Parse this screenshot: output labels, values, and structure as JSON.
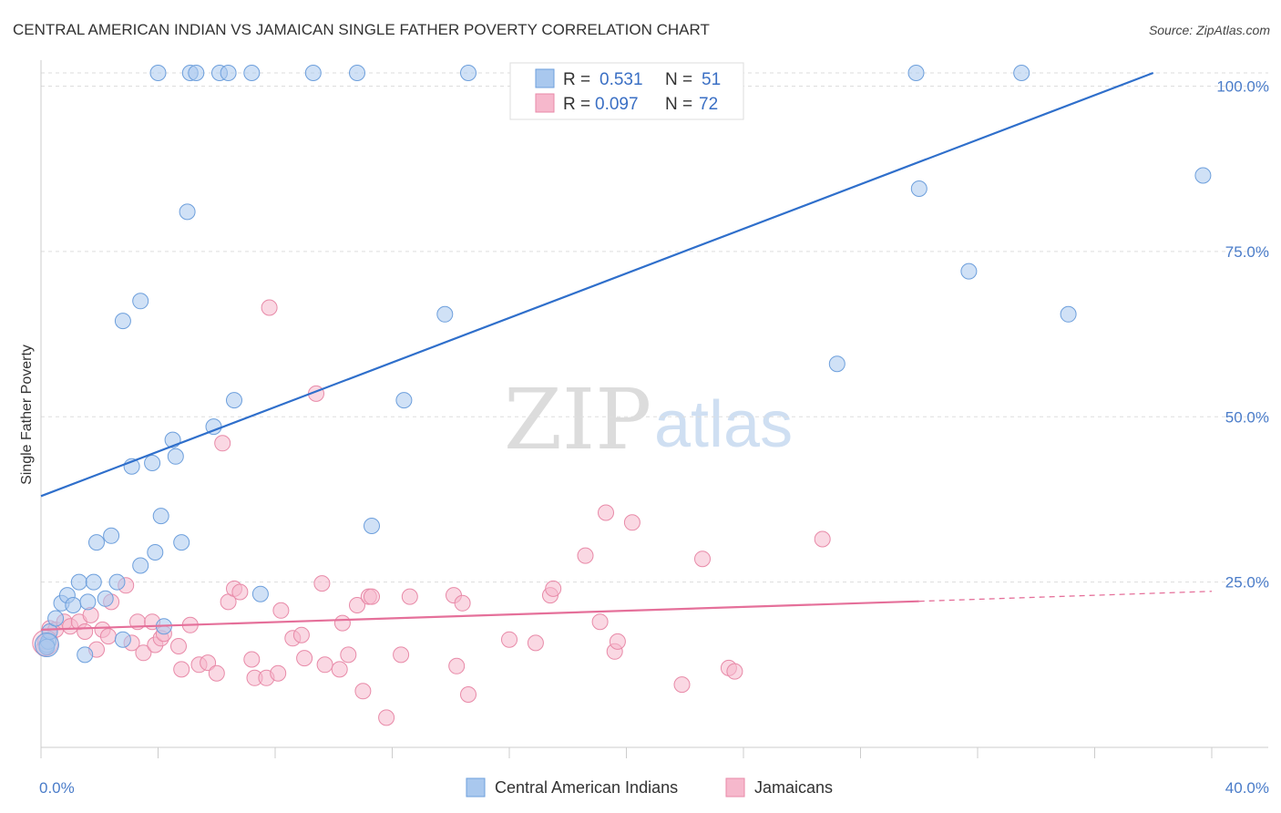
{
  "title": "CENTRAL AMERICAN INDIAN VS JAMAICAN SINGLE FATHER POVERTY CORRELATION CHART",
  "source": "Source: ZipAtlas.com",
  "watermark": {
    "part1": "ZIP",
    "part2": "atlas"
  },
  "legend_box": {
    "rows": [
      {
        "r_label": "R =",
        "r_value": "0.531",
        "n_label": "N =",
        "n_value": "51"
      },
      {
        "r_label": "R =",
        "r_value": "0.097",
        "n_label": "N =",
        "n_value": "72"
      }
    ]
  },
  "bottom_legend": [
    "Central American Indians",
    "Jamaicans"
  ],
  "colors": {
    "blue_fill": "#a9c8ee",
    "blue_stroke": "#6d9fdc",
    "blue_line": "#2f6fcb",
    "pink_fill": "#f6b8cc",
    "pink_stroke": "#e88aa8",
    "pink_line": "#e5709a",
    "grid": "#dddddd",
    "tick_label": "#4a7cc9"
  },
  "chart_data": {
    "type": "scatter",
    "title": "CENTRAL AMERICAN INDIAN VS JAMAICAN SINGLE FATHER POVERTY CORRELATION CHART",
    "xlabel": "",
    "ylabel": "Single Father Poverty",
    "xlim": [
      0,
      40
    ],
    "ylim": [
      0,
      102
    ],
    "x_tick_labels": [
      "0.0%",
      "40.0%"
    ],
    "y_ticks": [
      25,
      50,
      75,
      100
    ],
    "y_tick_labels": [
      "25.0%",
      "50.0%",
      "75.0%",
      "100.0%"
    ],
    "grid": true,
    "legend_position": "top-center",
    "series": [
      {
        "name": "Central American Indians",
        "color": "#a9c8ee",
        "r": 0.531,
        "n": 51,
        "trend": {
          "x": [
            0,
            38
          ],
          "y": [
            38.0,
            102.0
          ]
        },
        "points": [
          [
            0.2,
            15.5
          ],
          [
            0.25,
            16.0
          ],
          [
            0.3,
            17.5
          ],
          [
            0.5,
            19.5
          ],
          [
            0.7,
            21.8
          ],
          [
            0.9,
            23.0
          ],
          [
            1.1,
            21.5
          ],
          [
            1.3,
            25.0
          ],
          [
            1.5,
            14.0
          ],
          [
            1.6,
            22.0
          ],
          [
            1.8,
            25.0
          ],
          [
            1.9,
            31.0
          ],
          [
            2.2,
            22.5
          ],
          [
            2.4,
            32.0
          ],
          [
            2.6,
            25.0
          ],
          [
            2.8,
            16.3
          ],
          [
            3.1,
            42.5
          ],
          [
            3.4,
            27.5
          ],
          [
            3.8,
            43.0
          ],
          [
            3.9,
            29.5
          ],
          [
            4.1,
            35.0
          ],
          [
            4.2,
            18.3
          ],
          [
            4.5,
            46.5
          ],
          [
            4.6,
            44.0
          ],
          [
            4.8,
            31.0
          ],
          [
            5.0,
            81.0
          ],
          [
            2.8,
            64.5
          ],
          [
            3.4,
            67.5
          ],
          [
            5.9,
            48.5
          ],
          [
            6.6,
            52.5
          ],
          [
            7.5,
            23.2
          ],
          [
            11.3,
            33.5
          ],
          [
            12.4,
            52.5
          ],
          [
            13.8,
            65.5
          ],
          [
            4.0,
            102.0
          ],
          [
            5.1,
            102.0
          ],
          [
            5.3,
            102.0
          ],
          [
            6.1,
            102.0
          ],
          [
            6.4,
            102.0
          ],
          [
            7.2,
            102.0
          ],
          [
            9.3,
            102.0
          ],
          [
            10.8,
            102.0
          ],
          [
            14.6,
            102.0
          ],
          [
            27.2,
            58.0
          ],
          [
            30.0,
            84.5
          ],
          [
            31.7,
            72.0
          ],
          [
            35.1,
            65.5
          ],
          [
            39.7,
            86.5
          ],
          [
            29.9,
            102.0
          ],
          [
            33.5,
            102.0
          ],
          [
            0.2,
            15.2
          ]
        ]
      },
      {
        "name": "Jamaicans",
        "color": "#f6b8cc",
        "r": 0.097,
        "n": 72,
        "trend": {
          "x": [
            0,
            30
          ],
          "y": [
            17.8,
            22.1
          ]
        },
        "trend_dashed": {
          "x": [
            30,
            40
          ],
          "y": [
            22.1,
            23.6
          ]
        },
        "points": [
          [
            0.1,
            15.0
          ],
          [
            0.3,
            18.0
          ],
          [
            0.5,
            17.8
          ],
          [
            0.8,
            19.0
          ],
          [
            1.0,
            18.3
          ],
          [
            1.3,
            19.0
          ],
          [
            1.5,
            17.5
          ],
          [
            1.7,
            20.0
          ],
          [
            1.9,
            14.8
          ],
          [
            2.1,
            17.8
          ],
          [
            2.3,
            16.8
          ],
          [
            2.4,
            22.0
          ],
          [
            2.9,
            24.5
          ],
          [
            3.1,
            15.8
          ],
          [
            3.3,
            19.0
          ],
          [
            3.5,
            14.3
          ],
          [
            3.8,
            19.0
          ],
          [
            3.9,
            15.5
          ],
          [
            4.1,
            16.5
          ],
          [
            4.2,
            17.2
          ],
          [
            4.7,
            15.3
          ],
          [
            4.8,
            11.8
          ],
          [
            5.1,
            18.5
          ],
          [
            5.4,
            12.5
          ],
          [
            5.7,
            12.8
          ],
          [
            6.0,
            11.2
          ],
          [
            6.2,
            46.0
          ],
          [
            6.4,
            22.0
          ],
          [
            6.6,
            24.0
          ],
          [
            6.8,
            23.5
          ],
          [
            7.2,
            13.3
          ],
          [
            7.3,
            10.5
          ],
          [
            7.7,
            10.5
          ],
          [
            7.8,
            66.5
          ],
          [
            8.1,
            11.2
          ],
          [
            8.2,
            20.7
          ],
          [
            8.6,
            16.5
          ],
          [
            8.9,
            17.0
          ],
          [
            9.0,
            13.5
          ],
          [
            9.4,
            53.5
          ],
          [
            9.6,
            24.8
          ],
          [
            9.7,
            12.5
          ],
          [
            10.2,
            11.8
          ],
          [
            10.3,
            18.8
          ],
          [
            10.5,
            14.0
          ],
          [
            10.8,
            21.5
          ],
          [
            11.0,
            8.5
          ],
          [
            11.2,
            22.8
          ],
          [
            11.3,
            22.8
          ],
          [
            11.8,
            4.5
          ],
          [
            12.3,
            14.0
          ],
          [
            12.6,
            22.8
          ],
          [
            14.1,
            23.0
          ],
          [
            14.2,
            12.3
          ],
          [
            14.4,
            21.8
          ],
          [
            14.6,
            8.0
          ],
          [
            16.0,
            16.3
          ],
          [
            16.9,
            15.8
          ],
          [
            17.4,
            23.0
          ],
          [
            17.5,
            24.0
          ],
          [
            18.6,
            29.0
          ],
          [
            19.1,
            19.0
          ],
          [
            19.3,
            35.5
          ],
          [
            19.6,
            14.5
          ],
          [
            19.7,
            16.0
          ],
          [
            20.2,
            34.0
          ],
          [
            21.9,
            9.5
          ],
          [
            22.6,
            28.5
          ],
          [
            23.5,
            12.0
          ],
          [
            23.7,
            11.5
          ],
          [
            26.7,
            31.5
          ],
          [
            0.15,
            16.0
          ]
        ]
      }
    ]
  }
}
